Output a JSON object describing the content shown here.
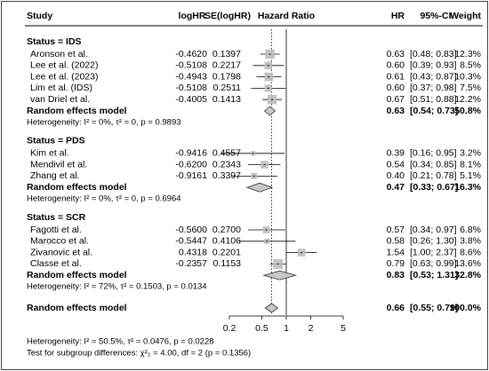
{
  "chart_data": {
    "type": "forest",
    "headers": {
      "study": "Study",
      "loghr": "logHR",
      "se": "SE(logHR)",
      "plot": "Hazard Ratio",
      "hr": "HR",
      "ci": "95%-CI",
      "weight": "Weight"
    },
    "xlim": [
      0.2,
      5
    ],
    "xticks": [
      0.2,
      0.5,
      1,
      2,
      5
    ],
    "log": true,
    "reference_line": 1,
    "subgroups": [
      {
        "label": "Status = IDS",
        "studies": [
          {
            "study": "Aronson et al.",
            "loghr": "-0.4620",
            "se": "0.1397",
            "hr": {
              "value": 0.63,
              "label": "0.63"
            },
            "ci": {
              "lower": 0.48,
              "upper": 0.83,
              "label": "[0.48; 0.83]"
            },
            "weight": {
              "value": 12.3,
              "label": "12.3%"
            }
          },
          {
            "study": "Lee et al. (2022)",
            "loghr": "-0.5108",
            "se": "0.2217",
            "hr": {
              "value": 0.6,
              "label": "0.60"
            },
            "ci": {
              "lower": 0.39,
              "upper": 0.93,
              "label": "[0.39; 0.93]"
            },
            "weight": {
              "value": 8.5,
              "label": "8.5%"
            }
          },
          {
            "study": "Lee et al. (2023)",
            "loghr": "-0.4943",
            "se": "0.1798",
            "hr": {
              "value": 0.61,
              "label": "0.61"
            },
            "ci": {
              "lower": 0.43,
              "upper": 0.87,
              "label": "[0.43; 0.87]"
            },
            "weight": {
              "value": 10.3,
              "label": "10.3%"
            }
          },
          {
            "study": "Lim et al. (IDS)",
            "loghr": "-0.5108",
            "se": "0.2511",
            "hr": {
              "value": 0.6,
              "label": "0.60"
            },
            "ci": {
              "lower": 0.37,
              "upper": 0.98,
              "label": "[0.37; 0.98]"
            },
            "weight": {
              "value": 7.5,
              "label": "7.5%"
            }
          },
          {
            "study": "van Driel et al.",
            "loghr": "-0.4005",
            "se": "0.1413",
            "hr": {
              "value": 0.67,
              "label": "0.67"
            },
            "ci": {
              "lower": 0.51,
              "upper": 0.88,
              "label": "[0.51; 0.88]"
            },
            "weight": {
              "value": 12.2,
              "label": "12.2%"
            }
          }
        ],
        "pooled": {
          "name": "Random effects model",
          "hr": {
            "value": 0.63,
            "label": "0.63"
          },
          "ci": {
            "lower": 0.54,
            "upper": 0.73,
            "label": "[0.54; 0.73]"
          },
          "weight": {
            "value": 50.8,
            "label": "50.8%"
          }
        },
        "heterogeneity": "Heterogeneity: I² = 0%, τ² = 0, p = 0.9893"
      },
      {
        "label": "Status = PDS",
        "studies": [
          {
            "study": "Kim et al.",
            "loghr": "-0.9416",
            "se": "0.4557",
            "hr": {
              "value": 0.39,
              "label": "0.39"
            },
            "ci": {
              "lower": 0.16,
              "upper": 0.95,
              "label": "[0.16; 0.95]"
            },
            "weight": {
              "value": 3.2,
              "label": "3.2%"
            }
          },
          {
            "study": "Mendivil et al.",
            "loghr": "-0.6200",
            "se": "0.2343",
            "hr": {
              "value": 0.54,
              "label": "0.54"
            },
            "ci": {
              "lower": 0.34,
              "upper": 0.85,
              "label": "[0.34; 0.85]"
            },
            "weight": {
              "value": 8.1,
              "label": "8.1%"
            }
          },
          {
            "study": "Zhang et al.",
            "loghr": "-0.9161",
            "se": "0.3397",
            "hr": {
              "value": 0.4,
              "label": "0.40"
            },
            "ci": {
              "lower": 0.21,
              "upper": 0.78,
              "label": "[0.21; 0.78]"
            },
            "weight": {
              "value": 5.1,
              "label": "5.1%"
            }
          }
        ],
        "pooled": {
          "name": "Random effects model",
          "hr": {
            "value": 0.47,
            "label": "0.47"
          },
          "ci": {
            "lower": 0.33,
            "upper": 0.67,
            "label": "[0.33; 0.67]"
          },
          "weight": {
            "value": 16.3,
            "label": "16.3%"
          }
        },
        "heterogeneity": "Heterogeneity: I² = 0%, τ² = 0, p = 0.6964"
      },
      {
        "label": "Status = SCR",
        "studies": [
          {
            "study": "Fagotti et al.",
            "loghr": "-0.5600",
            "se": "0.2700",
            "hr": {
              "value": 0.57,
              "label": "0.57"
            },
            "ci": {
              "lower": 0.34,
              "upper": 0.97,
              "label": "[0.34; 0.97]"
            },
            "weight": {
              "value": 6.8,
              "label": "6.8%"
            }
          },
          {
            "study": "Marocco et al.",
            "loghr": "-0.5447",
            "se": "0.4106",
            "hr": {
              "value": 0.58,
              "label": "0.58"
            },
            "ci": {
              "lower": 0.26,
              "upper": 1.3,
              "label": "[0.26; 1.30]"
            },
            "weight": {
              "value": 3.8,
              "label": "3.8%"
            }
          },
          {
            "study": "Zivanovic et al.",
            "loghr": "0.4318",
            "se": "0.2201",
            "hr": {
              "value": 1.54,
              "label": "1.54"
            },
            "ci": {
              "lower": 1.0,
              "upper": 2.37,
              "label": "[1.00; 2.37]"
            },
            "weight": {
              "value": 8.6,
              "label": "8.6%"
            }
          },
          {
            "study": "Classe et al.",
            "loghr": "-0.2357",
            "se": "0.1153",
            "hr": {
              "value": 0.79,
              "label": "0.79"
            },
            "ci": {
              "lower": 0.63,
              "upper": 0.99,
              "label": "[0.63; 0.99]"
            },
            "weight": {
              "value": 13.6,
              "label": "13.6%"
            }
          }
        ],
        "pooled": {
          "name": "Random effects model",
          "hr": {
            "value": 0.83,
            "label": "0.83"
          },
          "ci": {
            "lower": 0.53,
            "upper": 1.31,
            "label": "[0.53; 1.31]"
          },
          "weight": {
            "value": 32.8,
            "label": "32.8%"
          }
        },
        "heterogeneity": "Heterogeneity: I² = 72%, τ² = 0.1503, p = 0.0134"
      }
    ],
    "overall": {
      "name": "Random effects model",
      "hr": {
        "value": 0.66,
        "label": "0.66"
      },
      "ci": {
        "lower": 0.55,
        "upper": 0.79,
        "label": "[0.55; 0.79]"
      },
      "weight": {
        "value": 100.0,
        "label": "100.0%"
      }
    },
    "heterogeneity": "Heterogeneity: I² = 50.5%, τ² = 0.0476, p = 0.0228",
    "subgroup_test": "Test for subgroup differences: χ²₂ = 4.00, df = 2 (p = 0.1356)"
  }
}
